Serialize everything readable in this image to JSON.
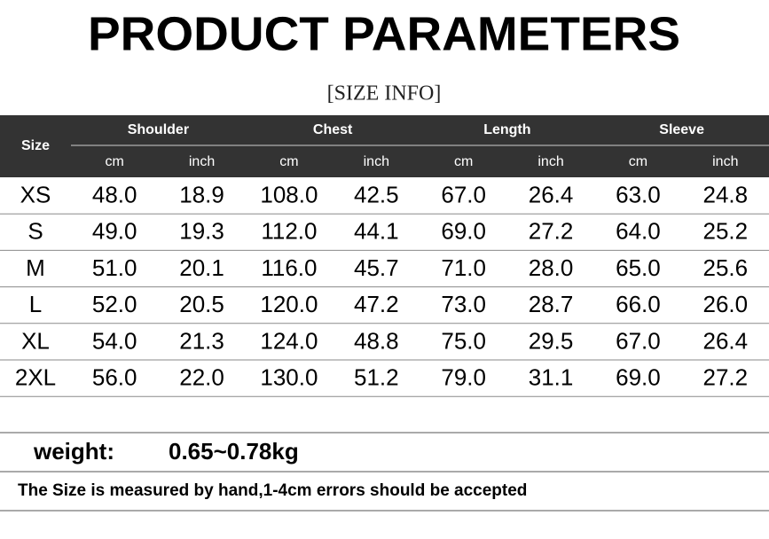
{
  "header": {
    "title": "PRODUCT PARAMETERS",
    "subtitle": "[SIZE INFO]"
  },
  "table": {
    "size_label": "Size",
    "groups": [
      "Shoulder",
      "Chest",
      "Length",
      "Sleeve"
    ],
    "subheaders": [
      "cm",
      "inch",
      "cm",
      "inch",
      "cm",
      "inch",
      "cm",
      "inch"
    ],
    "rows": [
      [
        "XS",
        "48.0",
        "18.9",
        "108.0",
        "42.5",
        "67.0",
        "26.4",
        "63.0",
        "24.8"
      ],
      [
        "S",
        "49.0",
        "19.3",
        "112.0",
        "44.1",
        "69.0",
        "27.2",
        "64.0",
        "25.2"
      ],
      [
        "M",
        "51.0",
        "20.1",
        "116.0",
        "45.7",
        "71.0",
        "28.0",
        "65.0",
        "25.6"
      ],
      [
        "L",
        "52.0",
        "20.5",
        "120.0",
        "47.2",
        "73.0",
        "28.7",
        "66.0",
        "26.0"
      ],
      [
        "XL",
        "54.0",
        "21.3",
        "124.0",
        "48.8",
        "75.0",
        "29.5",
        "67.0",
        "26.4"
      ],
      [
        "2XL",
        "56.0",
        "22.0",
        "130.0",
        "51.2",
        "79.0",
        "31.1",
        "69.0",
        "27.2"
      ]
    ]
  },
  "weight": {
    "label": "weight:",
    "value": "0.65~0.78kg"
  },
  "note": "The Size is measured by hand,1-4cm errors should be accepted"
}
